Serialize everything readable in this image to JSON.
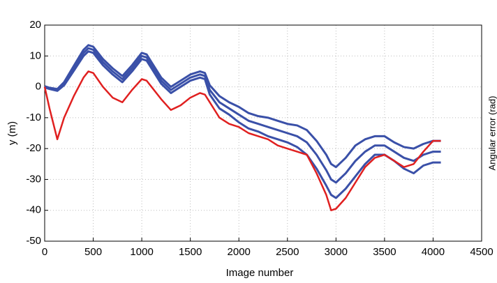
{
  "chart_data": {
    "type": "line",
    "x_label": "Image number",
    "y_label": "y (m)",
    "y2_label": "Angular error (rad)",
    "x": [
      0,
      50,
      130,
      200,
      300,
      400,
      450,
      500,
      600,
      700,
      800,
      900,
      1000,
      1050,
      1100,
      1200,
      1300,
      1400,
      1500,
      1600,
      1650,
      1700,
      1800,
      1900,
      2000,
      2100,
      2200,
      2300,
      2400,
      2500,
      2600,
      2700,
      2800,
      2900,
      2950,
      3000,
      3100,
      3200,
      3300,
      3400,
      3500,
      3600,
      3700,
      3800,
      3900,
      4000,
      4080
    ],
    "series": [
      {
        "color": "#3a50a8",
        "values": [
          0.2,
          -0.3,
          -0.7,
          1.5,
          6.8,
          12,
          13.5,
          13,
          9,
          6,
          3.5,
          7,
          11,
          10.5,
          8,
          3,
          0,
          2,
          4,
          5,
          4.5,
          0.5,
          -3,
          -5,
          -6.5,
          -8.5,
          -9.5,
          -10,
          -11,
          -12,
          -12.5,
          -14,
          -17.5,
          -22,
          -25,
          -26,
          -23,
          -19,
          -17,
          -16,
          -16,
          -18,
          -19.5,
          -20,
          -18.5,
          -17.5,
          -17.5
        ]
      },
      {
        "color": "#3a50a8",
        "values": [
          0,
          -0.5,
          -1,
          1,
          6,
          11,
          12.5,
          12,
          8,
          5,
          2.5,
          6,
          10,
          9.5,
          7,
          2,
          -1,
          1,
          3,
          4,
          3.5,
          -1,
          -5,
          -7,
          -9,
          -11,
          -12,
          -13,
          -14,
          -15,
          -16,
          -18,
          -22,
          -27,
          -30,
          -31,
          -28,
          -24,
          -21,
          -19,
          -19,
          -21,
          -23,
          -24,
          -22,
          -21,
          -21
        ]
      },
      {
        "color": "#3a50a8",
        "values": [
          -0.2,
          -0.7,
          -1.3,
          0.5,
          5.2,
          10,
          11.5,
          11,
          7,
          4,
          1.5,
          5,
          9,
          8.5,
          6,
          1,
          -2,
          0,
          2,
          3,
          2.5,
          -2.5,
          -7,
          -9,
          -11.5,
          -13.5,
          -14.5,
          -16,
          -17,
          -18,
          -19.5,
          -22,
          -26.5,
          -32,
          -35,
          -36,
          -33,
          -29,
          -25,
          -22,
          -22,
          -24,
          -26.5,
          -28,
          -25.5,
          -24.5,
          -24.5
        ]
      },
      {
        "color": "#e02020",
        "values": [
          0,
          -7,
          -17,
          -10,
          -3,
          3,
          5,
          4.5,
          0,
          -3.5,
          -5,
          -1,
          2.5,
          2,
          0,
          -4,
          -7.5,
          -6,
          -3.5,
          -2,
          -2.5,
          -5,
          -10,
          -12,
          -13,
          -15,
          -16,
          -17,
          -19,
          -20,
          -21,
          -22,
          -28,
          -35,
          -40,
          -39.5,
          -36,
          -31,
          -26,
          -23,
          -22,
          -24,
          -26,
          -25,
          -21,
          -17.5,
          -17.5
        ]
      }
    ],
    "xlim": [
      0,
      4500
    ],
    "xticks": [
      0,
      500,
      1000,
      1500,
      2000,
      2500,
      3000,
      3500,
      4000,
      4500
    ],
    "ylim": [
      -50,
      20
    ],
    "yticks": [
      -50,
      -40,
      -30,
      -20,
      -10,
      0,
      10,
      20
    ],
    "grid": true
  }
}
